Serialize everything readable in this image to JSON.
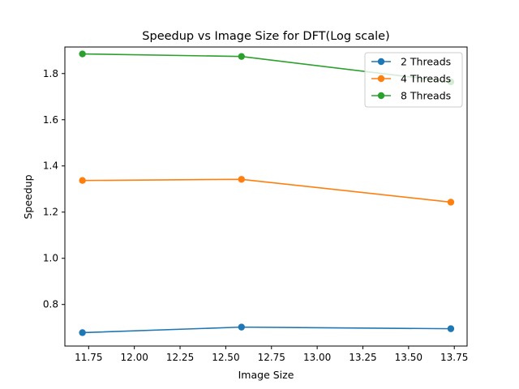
{
  "chart_data": {
    "type": "line",
    "title": "Speedup vs Image Size for DFT(Log scale)",
    "xlabel": "Image Size",
    "ylabel": "Speedup",
    "xlim": [
      11.62,
      13.82
    ],
    "ylim": [
      0.62,
      1.915
    ],
    "x_ticks": [
      11.75,
      12.0,
      12.25,
      12.5,
      12.75,
      13.0,
      13.25,
      13.5,
      13.75
    ],
    "x_tick_labels": [
      "11.75",
      "12.00",
      "12.25",
      "12.50",
      "12.75",
      "13.00",
      "13.25",
      "13.50",
      "13.75"
    ],
    "y_ticks": [
      0.8,
      1.0,
      1.2,
      1.4,
      1.6,
      1.8
    ],
    "y_tick_labels": [
      "0.8",
      "1.0",
      "1.2",
      "1.4",
      "1.6",
      "1.8"
    ],
    "grid": false,
    "legend_position": "top-right",
    "x": [
      11.716,
      12.586,
      13.731
    ],
    "series": [
      {
        "name": "2 Threads",
        "color": "#1f77b4",
        "values": [
          0.678,
          0.702,
          0.695
        ]
      },
      {
        "name": "4 Threads",
        "color": "#ff7f0e",
        "values": [
          1.337,
          1.342,
          1.243
        ]
      },
      {
        "name": "8 Threads",
        "color": "#2ca02c",
        "values": [
          1.885,
          1.874,
          1.764
        ]
      }
    ]
  }
}
